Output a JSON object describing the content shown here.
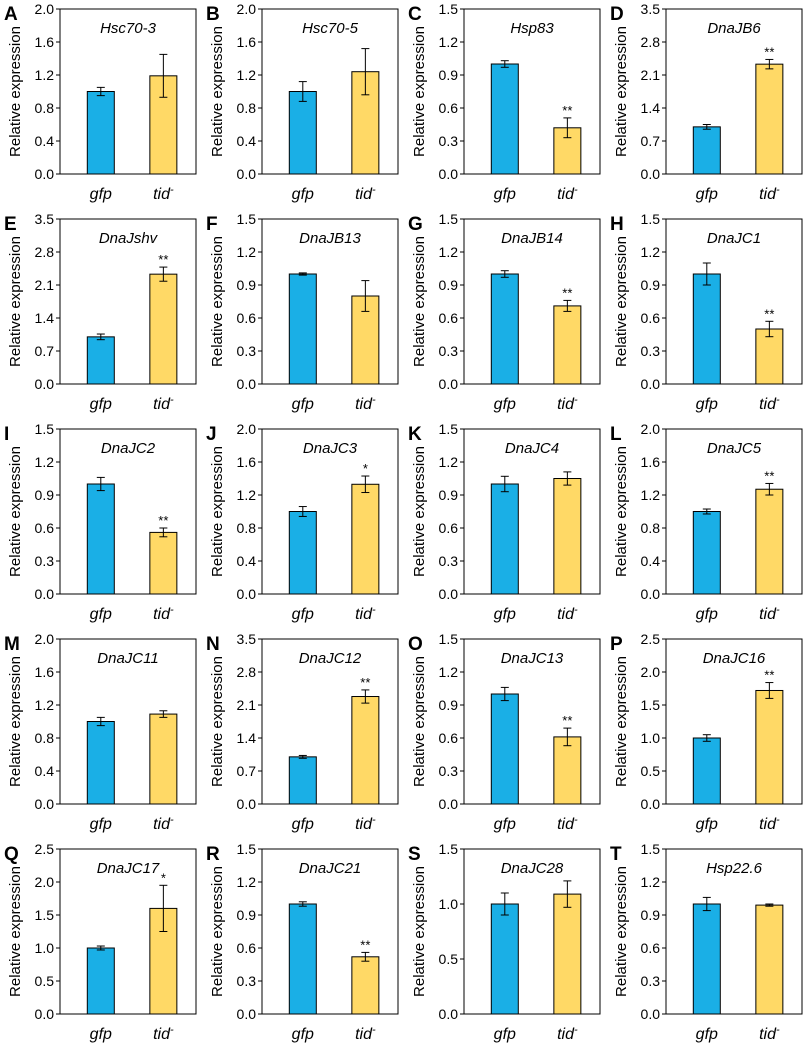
{
  "colors": {
    "gfp": "#1AAFE6",
    "tid": "#FFD966",
    "stroke": "#000000"
  },
  "chart_data": [
    {
      "panel": "A",
      "title": "Hsc70-3",
      "type": "bar",
      "ylabel": "Relative expression",
      "categories": [
        "gfp",
        "tid-"
      ],
      "values": [
        1.0,
        1.19
      ],
      "errors": [
        0.05,
        0.26
      ],
      "significance": [
        "",
        ""
      ],
      "ylim": [
        0,
        2.0
      ],
      "yticks": [
        "0.0",
        "0.4",
        "0.8",
        "1.2",
        "1.6",
        "2.0"
      ]
    },
    {
      "panel": "B",
      "title": "Hsc70-5",
      "type": "bar",
      "ylabel": "Relative expression",
      "categories": [
        "gfp",
        "tid-"
      ],
      "values": [
        1.0,
        1.24
      ],
      "errors": [
        0.12,
        0.28
      ],
      "significance": [
        "",
        ""
      ],
      "ylim": [
        0,
        2.0
      ],
      "yticks": [
        "0.0",
        "0.4",
        "0.8",
        "1.2",
        "1.6",
        "2.0"
      ]
    },
    {
      "panel": "C",
      "title": "Hsp83",
      "type": "bar",
      "ylabel": "Relative expression",
      "categories": [
        "gfp",
        "tid-"
      ],
      "values": [
        1.0,
        0.42
      ],
      "errors": [
        0.03,
        0.09
      ],
      "significance": [
        "",
        "**"
      ],
      "ylim": [
        0,
        1.5
      ],
      "yticks": [
        "0.0",
        "0.3",
        "0.6",
        "0.9",
        "1.2",
        "1.5"
      ]
    },
    {
      "panel": "D",
      "title": "DnaJB6",
      "type": "bar",
      "ylabel": "Relative expression",
      "categories": [
        "gfp",
        "tid-"
      ],
      "values": [
        1.0,
        2.33
      ],
      "errors": [
        0.05,
        0.1
      ],
      "significance": [
        "",
        "**"
      ],
      "ylim": [
        0,
        3.5
      ],
      "yticks": [
        "0.0",
        "0.7",
        "1.4",
        "2.1",
        "2.8",
        "3.5"
      ]
    },
    {
      "panel": "E",
      "title": "DnaJshv",
      "type": "bar",
      "ylabel": "Relative expression",
      "categories": [
        "gfp",
        "tid-"
      ],
      "values": [
        1.0,
        2.33
      ],
      "errors": [
        0.06,
        0.15
      ],
      "significance": [
        "",
        "**"
      ],
      "ylim": [
        0,
        3.5
      ],
      "yticks": [
        "0.0",
        "0.7",
        "1.4",
        "2.1",
        "2.8",
        "3.5"
      ]
    },
    {
      "panel": "F",
      "title": "DnaJB13",
      "type": "bar",
      "ylabel": "Relative expression",
      "categories": [
        "gfp",
        "tid-"
      ],
      "values": [
        1.0,
        0.8
      ],
      "errors": [
        0.01,
        0.14
      ],
      "significance": [
        "",
        ""
      ],
      "ylim": [
        0,
        1.5
      ],
      "yticks": [
        "0.0",
        "0.3",
        "0.6",
        "0.9",
        "1.2",
        "1.5"
      ]
    },
    {
      "panel": "G",
      "title": "DnaJB14",
      "type": "bar",
      "ylabel": "Relative expression",
      "categories": [
        "gfp",
        "tid-"
      ],
      "values": [
        1.0,
        0.71
      ],
      "errors": [
        0.03,
        0.05
      ],
      "significance": [
        "",
        "**"
      ],
      "ylim": [
        0,
        1.5
      ],
      "yticks": [
        "0.0",
        "0.3",
        "0.6",
        "0.9",
        "1.2",
        "1.5"
      ]
    },
    {
      "panel": "H",
      "title": "DnaJC1",
      "type": "bar",
      "ylabel": "Relative expression",
      "categories": [
        "gfp",
        "tid-"
      ],
      "values": [
        1.0,
        0.5
      ],
      "errors": [
        0.1,
        0.07
      ],
      "significance": [
        "",
        "**"
      ],
      "ylim": [
        0,
        1.5
      ],
      "yticks": [
        "0.0",
        "0.3",
        "0.6",
        "0.9",
        "1.2",
        "1.5"
      ]
    },
    {
      "panel": "I",
      "title": "DnaJC2",
      "type": "bar",
      "ylabel": "Relative expression",
      "categories": [
        "gfp",
        "tid-"
      ],
      "values": [
        1.0,
        0.56
      ],
      "errors": [
        0.06,
        0.04
      ],
      "significance": [
        "",
        "**"
      ],
      "ylim": [
        0,
        1.5
      ],
      "yticks": [
        "0.0",
        "0.3",
        "0.6",
        "0.9",
        "1.2",
        "1.5"
      ]
    },
    {
      "panel": "J",
      "title": "DnaJC3",
      "type": "bar",
      "ylabel": "Relative expression",
      "categories": [
        "gfp",
        "tid-"
      ],
      "values": [
        1.0,
        1.33
      ],
      "errors": [
        0.06,
        0.1
      ],
      "significance": [
        "",
        "*"
      ],
      "ylim": [
        0,
        2.0
      ],
      "yticks": [
        "0.0",
        "0.4",
        "0.8",
        "1.2",
        "1.6",
        "2.0"
      ]
    },
    {
      "panel": "K",
      "title": "DnaJC4",
      "type": "bar",
      "ylabel": "Relative expression",
      "categories": [
        "gfp",
        "tid-"
      ],
      "values": [
        1.0,
        1.05
      ],
      "errors": [
        0.07,
        0.06
      ],
      "significance": [
        "",
        ""
      ],
      "ylim": [
        0,
        1.5
      ],
      "yticks": [
        "0.0",
        "0.3",
        "0.6",
        "0.9",
        "1.2",
        "1.5"
      ]
    },
    {
      "panel": "L",
      "title": "DnaJC5",
      "type": "bar",
      "ylabel": "Relative expression",
      "categories": [
        "gfp",
        "tid-"
      ],
      "values": [
        1.0,
        1.27
      ],
      "errors": [
        0.03,
        0.07
      ],
      "significance": [
        "",
        "**"
      ],
      "ylim": [
        0,
        2.0
      ],
      "yticks": [
        "0.0",
        "0.4",
        "0.8",
        "1.2",
        "1.6",
        "2.0"
      ]
    },
    {
      "panel": "M",
      "title": "DnaJC11",
      "type": "bar",
      "ylabel": "Relative expression",
      "categories": [
        "gfp",
        "tid-"
      ],
      "values": [
        1.0,
        1.09
      ],
      "errors": [
        0.05,
        0.04
      ],
      "significance": [
        "",
        ""
      ],
      "ylim": [
        0,
        2.0
      ],
      "yticks": [
        "0.0",
        "0.4",
        "0.8",
        "1.2",
        "1.6",
        "2.0"
      ]
    },
    {
      "panel": "N",
      "title": "DnaJC12",
      "type": "bar",
      "ylabel": "Relative expression",
      "categories": [
        "gfp",
        "tid-"
      ],
      "values": [
        1.0,
        2.28
      ],
      "errors": [
        0.03,
        0.14
      ],
      "significance": [
        "",
        "**"
      ],
      "ylim": [
        0,
        3.5
      ],
      "yticks": [
        "0.0",
        "0.7",
        "1.4",
        "2.1",
        "2.8",
        "3.5"
      ]
    },
    {
      "panel": "O",
      "title": "DnaJC13",
      "type": "bar",
      "ylabel": "Relative expression",
      "categories": [
        "gfp",
        "tid-"
      ],
      "values": [
        1.0,
        0.61
      ],
      "errors": [
        0.06,
        0.08
      ],
      "significance": [
        "",
        "**"
      ],
      "ylim": [
        0,
        1.5
      ],
      "yticks": [
        "0.0",
        "0.3",
        "0.6",
        "0.9",
        "1.2",
        "1.5"
      ]
    },
    {
      "panel": "P",
      "title": "DnaJC16",
      "type": "bar",
      "ylabel": "Relative expression",
      "categories": [
        "gfp",
        "tid-"
      ],
      "values": [
        1.0,
        1.72
      ],
      "errors": [
        0.05,
        0.12
      ],
      "significance": [
        "",
        "**"
      ],
      "ylim": [
        0,
        2.5
      ],
      "yticks": [
        "0.0",
        "0.5",
        "1.0",
        "1.5",
        "2.0",
        "2.5"
      ]
    },
    {
      "panel": "Q",
      "title": "DnaJC17",
      "type": "bar",
      "ylabel": "Relative expression",
      "categories": [
        "gfp",
        "tid-"
      ],
      "values": [
        1.0,
        1.6
      ],
      "errors": [
        0.03,
        0.35
      ],
      "significance": [
        "",
        "*"
      ],
      "ylim": [
        0,
        2.5
      ],
      "yticks": [
        "0.0",
        "0.5",
        "1.0",
        "1.5",
        "2.0",
        "2.5"
      ]
    },
    {
      "panel": "R",
      "title": "DnaJC21",
      "type": "bar",
      "ylabel": "Relative expression",
      "categories": [
        "gfp",
        "tid-"
      ],
      "values": [
        1.0,
        0.52
      ],
      "errors": [
        0.02,
        0.04
      ],
      "significance": [
        "",
        "**"
      ],
      "ylim": [
        0,
        1.5
      ],
      "yticks": [
        "0.0",
        "0.3",
        "0.6",
        "0.9",
        "1.2",
        "1.5"
      ]
    },
    {
      "panel": "S",
      "title": "DnaJC28",
      "type": "bar",
      "ylabel": "Relative expression",
      "categories": [
        "gfp",
        "tid-"
      ],
      "values": [
        1.0,
        1.09
      ],
      "errors": [
        0.1,
        0.12
      ],
      "significance": [
        "",
        ""
      ],
      "ylim": [
        0,
        1.5
      ],
      "yticks": [
        "0.0",
        "0.5",
        "1.0",
        "1.5"
      ]
    },
    {
      "panel": "T",
      "title": "Hsp22.6",
      "type": "bar",
      "ylabel": "Relative expression",
      "categories": [
        "gfp",
        "tid-"
      ],
      "values": [
        1.0,
        0.99
      ],
      "errors": [
        0.06,
        0.01
      ],
      "significance": [
        "",
        ""
      ],
      "ylim": [
        0,
        1.5
      ],
      "yticks": [
        "0.0",
        "0.3",
        "0.6",
        "0.9",
        "1.2",
        "1.5"
      ]
    }
  ]
}
